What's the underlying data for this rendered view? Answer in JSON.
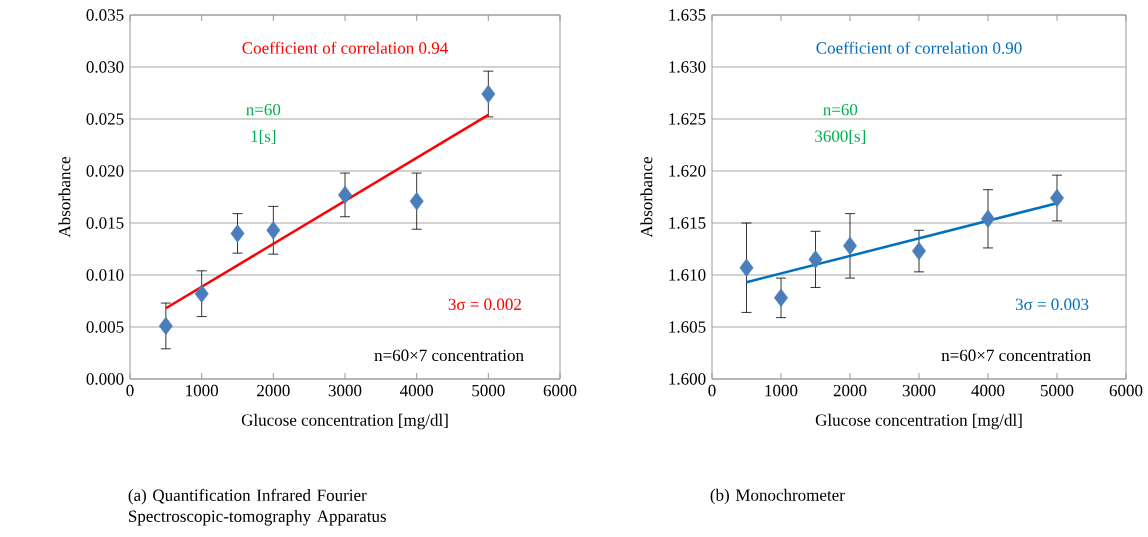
{
  "chart_data": [
    {
      "type": "scatter",
      "xlabel": "Glucose concentration [mg/dl]",
      "ylabel": "Absorbance",
      "marker": "diamond",
      "grid": "y",
      "xlim": [
        0,
        6000
      ],
      "xticks": [
        0,
        1000,
        2000,
        3000,
        4000,
        5000,
        6000
      ],
      "ylim": [
        0,
        0.035
      ],
      "yticks": [
        {
          "value": 0,
          "label": "0.000"
        },
        {
          "value": 0.005,
          "label": "0.005"
        },
        {
          "value": 0.01,
          "label": "0.010"
        },
        {
          "value": 0.015,
          "label": "0.015"
        },
        {
          "value": 0.02,
          "label": "0.020"
        },
        {
          "value": 0.025,
          "label": "0.025"
        },
        {
          "value": 0.03,
          "label": "0.030"
        },
        {
          "value": 0.035,
          "label": "0.035"
        }
      ],
      "series": [
        {
          "color": "#4a7ebb",
          "x": [
            500,
            1000,
            1500,
            2000,
            3000,
            4000,
            5000
          ],
          "values": [
            0.0051,
            0.0082,
            0.014,
            0.0143,
            0.0177,
            0.0171,
            0.0274
          ],
          "errors": [
            0.0022,
            0.0022,
            0.0019,
            0.0023,
            0.0021,
            0.0027,
            0.0022
          ]
        },
        {
          "type": "line",
          "marker": "none",
          "color": "#ff0000",
          "x": [
            500,
            5000
          ],
          "values": [
            0.0068,
            0.0254
          ]
        }
      ],
      "annotations": [
        "Coefficient of correlation 0.94",
        "n=60",
        "1[s]",
        "3σ = 0.002",
        "n=60×7 concentration",
        "(a) Quantification Infrared Fourier Spectroscopic-tomography Apparatus"
      ]
    },
    {
      "type": "scatter",
      "xlabel": "Glucose concentration [mg/dl]",
      "ylabel": "Absorbance",
      "marker": "diamond",
      "grid": "y",
      "xlim": [
        0,
        6000
      ],
      "xticks": [
        0,
        1000,
        2000,
        3000,
        4000,
        5000,
        6000
      ],
      "ylim": [
        1.6,
        1.635
      ],
      "yticks": [
        {
          "value": 1.6,
          "label": "1.600"
        },
        {
          "value": 1.605,
          "label": "1.605"
        },
        {
          "value": 1.61,
          "label": "1.610"
        },
        {
          "value": 1.615,
          "label": "1.615"
        },
        {
          "value": 1.62,
          "label": "1.620"
        },
        {
          "value": 1.625,
          "label": "1.625"
        },
        {
          "value": 1.63,
          "label": "1.630"
        },
        {
          "value": 1.635,
          "label": "1.635"
        }
      ],
      "series": [
        {
          "color": "#4a7ebb",
          "x": [
            500,
            1000,
            1500,
            2000,
            3000,
            4000,
            5000
          ],
          "values": [
            1.6107,
            1.6078,
            1.6115,
            1.6128,
            1.6123,
            1.6154,
            1.6174
          ],
          "errors": [
            0.0043,
            0.0019,
            0.0027,
            0.0031,
            0.002,
            0.0028,
            0.0022
          ]
        },
        {
          "type": "line",
          "marker": "none",
          "color": "#0070c0",
          "x": [
            500,
            5000
          ],
          "values": [
            1.6093,
            1.6169
          ]
        }
      ],
      "annotations": [
        "Coefficient of correlation 0.90",
        "n=60",
        "3600[s]",
        "3σ = 0.003",
        "n=60×7 concentration",
        "(b) Monochrometer"
      ]
    }
  ]
}
